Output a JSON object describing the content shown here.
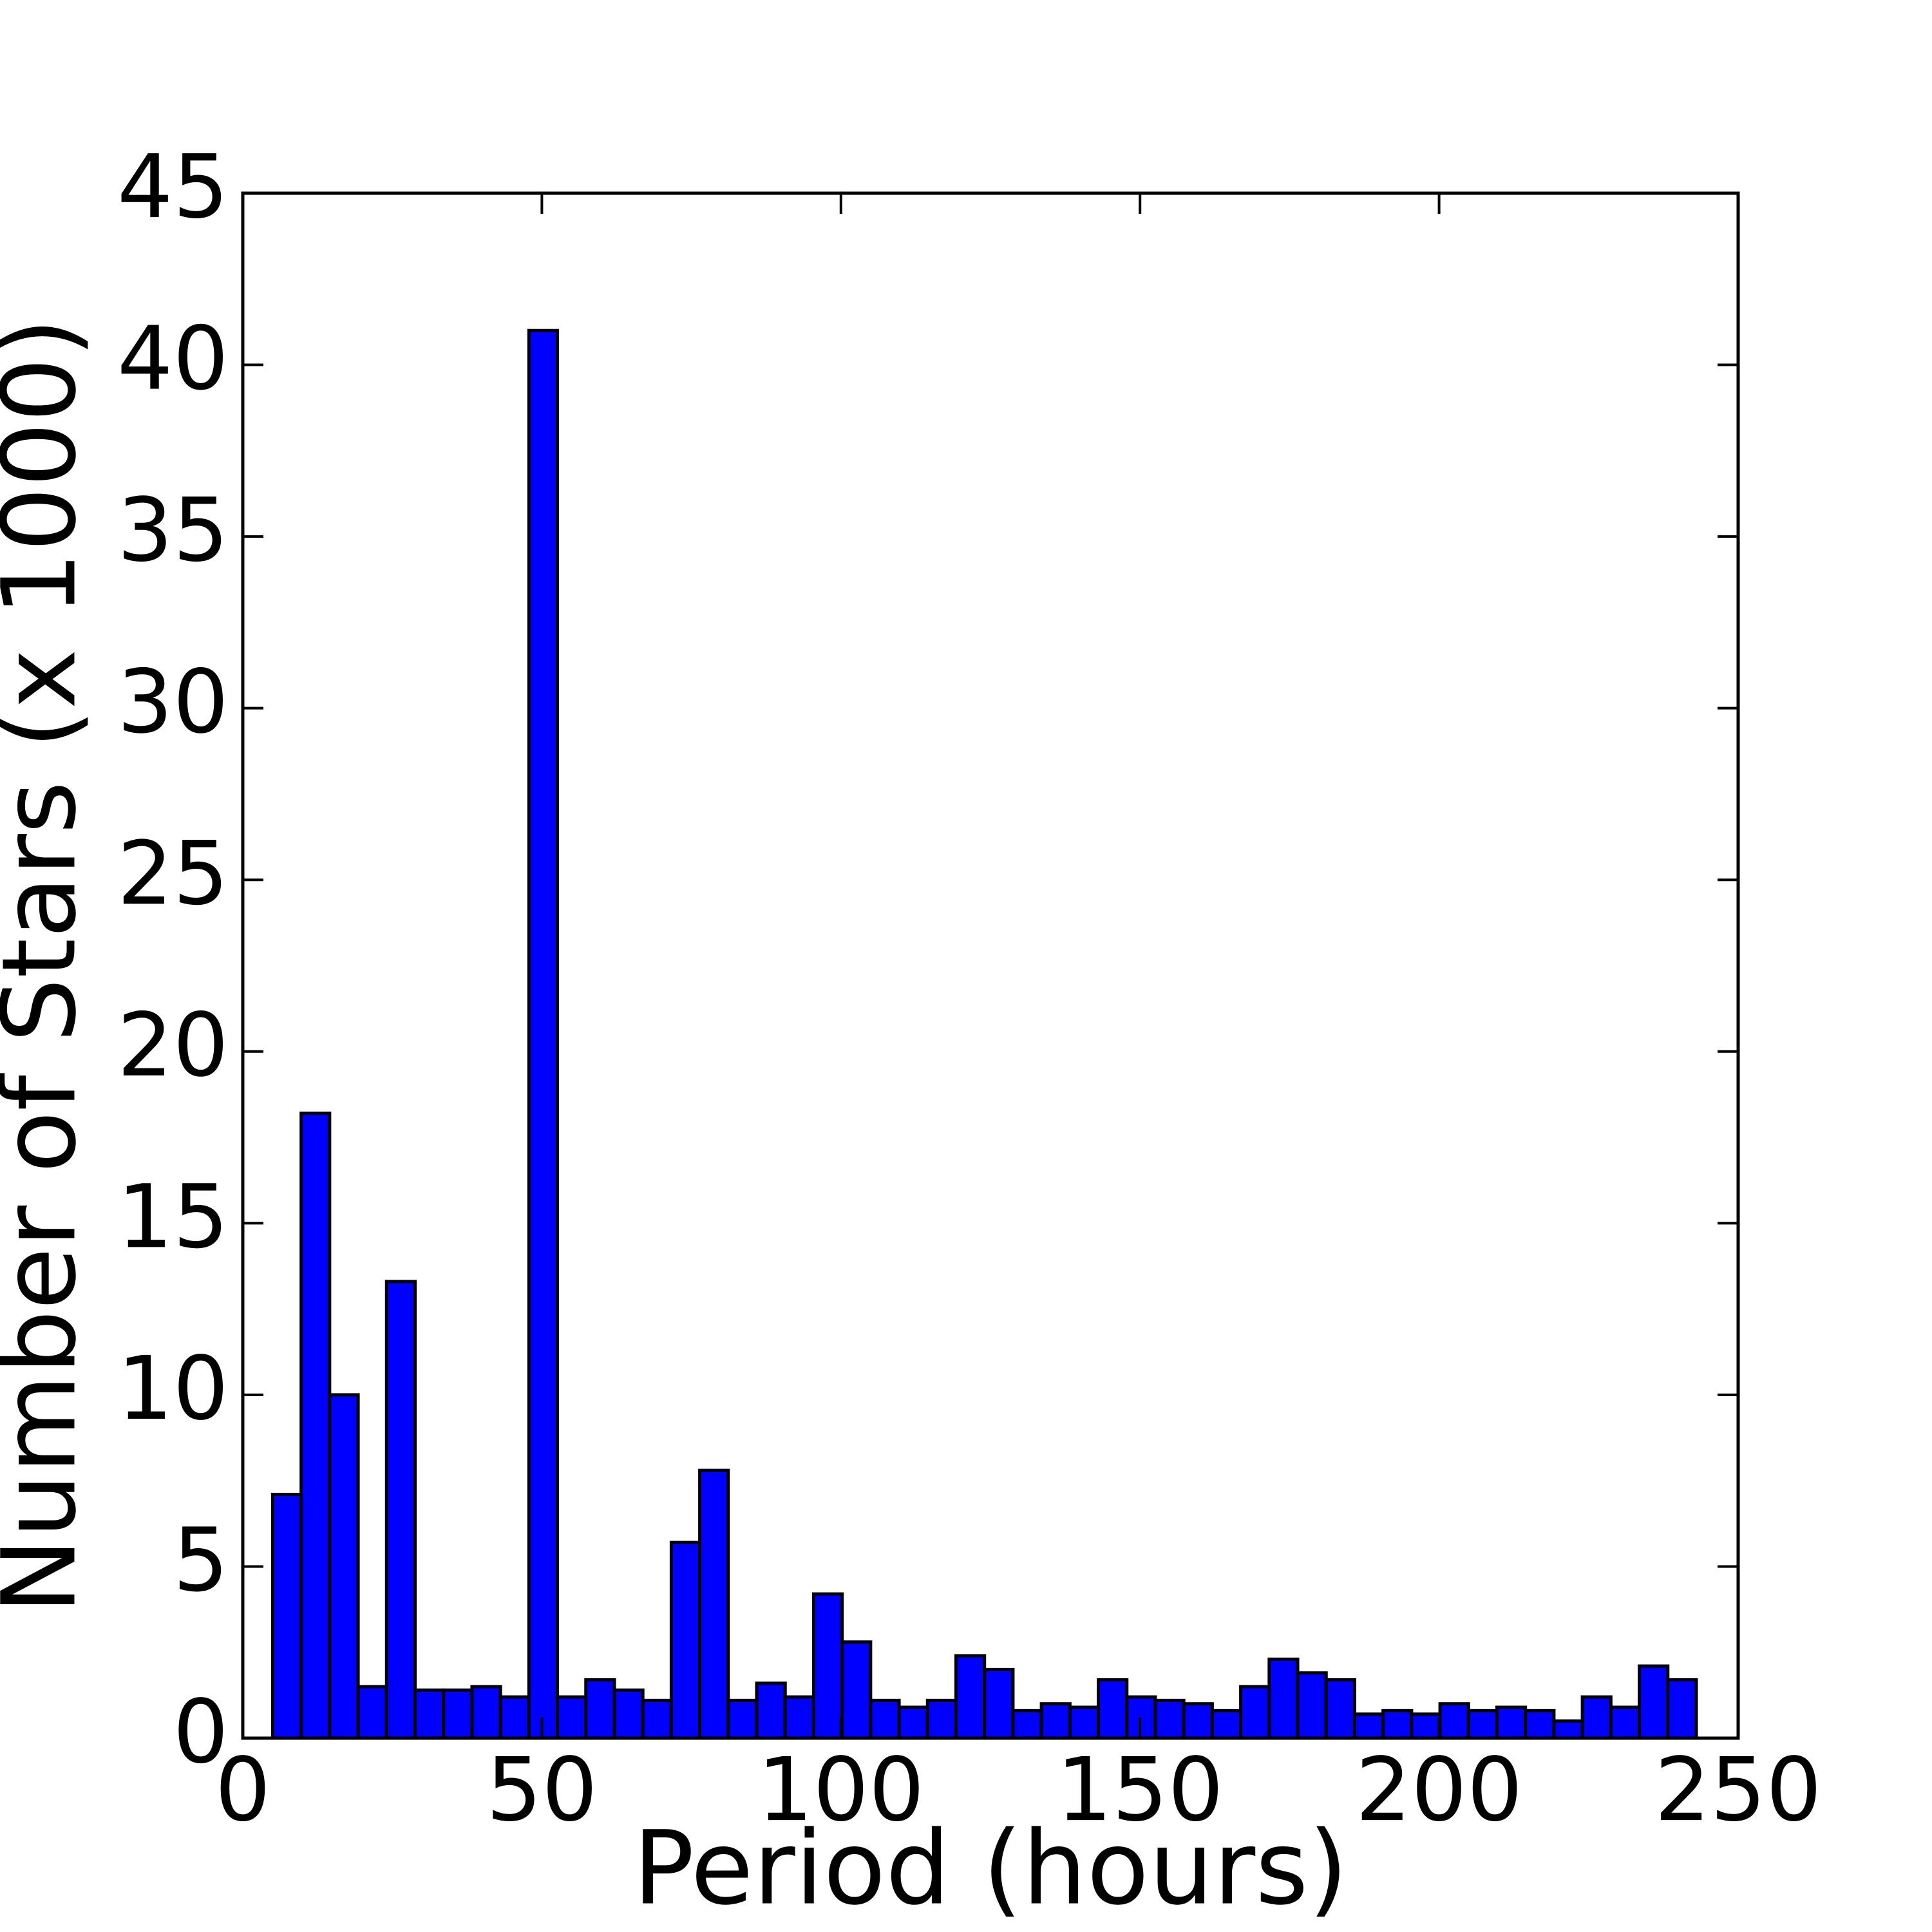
{
  "chart_data": {
    "type": "histogram",
    "xlabel": "Period (hours)",
    "ylabel": "Number of Stars (x 1000)",
    "bins": [
      5,
      9.76,
      14.52,
      19.28,
      24.04,
      28.8,
      33.56,
      38.32,
      43.08,
      47.84,
      52.6,
      57.36,
      62.12,
      66.88,
      71.64,
      76.4,
      81.16,
      85.92,
      90.68,
      95.44,
      100.2,
      104.96,
      109.72,
      114.48,
      119.24,
      124,
      128.76,
      133.52,
      138.28,
      143.04,
      147.8,
      152.56,
      157.32,
      162.08,
      166.84,
      171.6,
      176.36,
      181.12,
      185.88,
      190.64,
      195.4,
      200.16,
      204.92,
      209.68,
      214.44,
      219.2,
      223.96,
      228.72,
      233.48,
      238.24,
      243
    ],
    "values": [
      7.1,
      18.2,
      10.0,
      1.5,
      13.3,
      1.4,
      1.4,
      1.5,
      1.2,
      41.0,
      1.2,
      1.7,
      1.4,
      1.1,
      5.7,
      7.8,
      1.1,
      1.6,
      1.2,
      4.2,
      2.8,
      1.1,
      0.9,
      1.1,
      2.4,
      2.0,
      0.8,
      1.0,
      0.9,
      1.7,
      1.2,
      1.1,
      1.0,
      0.8,
      1.5,
      2.3,
      1.9,
      1.7,
      0.7,
      0.8,
      0.7,
      1.0,
      0.8,
      0.9,
      0.8,
      0.5,
      1.2,
      0.9,
      2.1,
      1.7
    ],
    "color": "#0000ff",
    "edgecolor": "#000000",
    "xlim": [
      0,
      250
    ],
    "xticks": [
      0,
      50,
      100,
      150,
      200,
      250
    ],
    "ylim": [
      0,
      45
    ],
    "yticks": [
      0,
      5,
      10,
      15,
      20,
      25,
      30,
      35,
      40,
      45
    ]
  }
}
